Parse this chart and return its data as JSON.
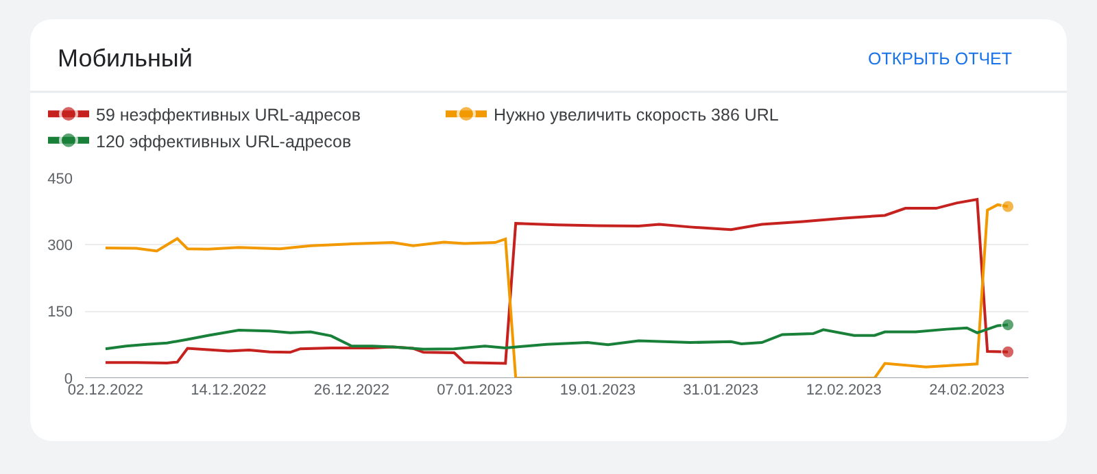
{
  "chart_data": {
    "type": "line",
    "title": "Мобильный",
    "annotations": [
      "ОТКРЫТЬ ОТЧЕТ"
    ],
    "series": [
      {
        "name": "59 неэффективных URL-адресов",
        "color": "#c5221f",
        "x": [
          "2022-12-02",
          "2022-12-05",
          "2022-12-08",
          "2022-12-09",
          "2022-12-10",
          "2022-12-12",
          "2022-12-14",
          "2022-12-16",
          "2022-12-18",
          "2022-12-20",
          "2022-12-21",
          "2022-12-24",
          "2022-12-28",
          "2022-12-30",
          "2023-01-01",
          "2023-01-02",
          "2023-01-05",
          "2023-01-06",
          "2023-01-10",
          "2023-01-11",
          "2023-01-15",
          "2023-01-19",
          "2023-01-23",
          "2023-01-25",
          "2023-01-28",
          "2023-02-01",
          "2023-02-04",
          "2023-02-08",
          "2023-02-12",
          "2023-02-16",
          "2023-02-18",
          "2023-02-21",
          "2023-02-23",
          "2023-02-25",
          "2023-02-26",
          "2023-02-28"
        ],
        "values": [
          35,
          35,
          34,
          36,
          67,
          64,
          61,
          63,
          59,
          58,
          66,
          68,
          68,
          70,
          67,
          58,
          57,
          35,
          33,
          348,
          345,
          343,
          342,
          346,
          340,
          334,
          346,
          352,
          360,
          366,
          382,
          382,
          394,
          402,
          60,
          59
        ]
      },
      {
        "name": "Нужно увеличить скорость 386 URL",
        "color": "#f29900",
        "x": [
          "2022-12-02",
          "2022-12-05",
          "2022-12-07",
          "2022-12-09",
          "2022-12-10",
          "2022-12-12",
          "2022-12-15",
          "2022-12-19",
          "2022-12-22",
          "2022-12-26",
          "2022-12-30",
          "2023-01-01",
          "2023-01-04",
          "2023-01-06",
          "2023-01-09",
          "2023-01-10",
          "2023-01-11",
          "2023-02-15",
          "2023-02-16",
          "2023-02-20",
          "2023-02-25",
          "2023-02-26",
          "2023-02-27",
          "2023-02-28"
        ],
        "values": [
          293,
          292,
          286,
          314,
          291,
          290,
          294,
          291,
          298,
          302,
          305,
          298,
          306,
          303,
          305,
          313,
          0,
          0,
          33,
          25,
          32,
          378,
          390,
          386
        ]
      },
      {
        "name": "120 эффективных URL-адресов",
        "color": "#188038",
        "x": [
          "2022-12-02",
          "2022-12-04",
          "2022-12-06",
          "2022-12-08",
          "2022-12-10",
          "2022-12-12",
          "2022-12-15",
          "2022-12-18",
          "2022-12-20",
          "2022-12-22",
          "2022-12-24",
          "2022-12-26",
          "2022-12-28",
          "2022-12-30",
          "2023-01-02",
          "2023-01-05",
          "2023-01-08",
          "2023-01-10",
          "2023-01-14",
          "2023-01-18",
          "2023-01-20",
          "2023-01-23",
          "2023-01-28",
          "2023-02-01",
          "2023-02-02",
          "2023-02-04",
          "2023-02-06",
          "2023-02-09",
          "2023-02-10",
          "2023-02-13",
          "2023-02-15",
          "2023-02-16",
          "2023-02-19",
          "2023-02-22",
          "2023-02-24",
          "2023-02-25",
          "2023-02-27",
          "2023-02-28"
        ],
        "values": [
          66,
          72,
          76,
          79,
          87,
          96,
          108,
          106,
          102,
          104,
          95,
          72,
          72,
          70,
          65,
          66,
          72,
          68,
          76,
          80,
          75,
          84,
          80,
          82,
          77,
          80,
          98,
          100,
          109,
          96,
          96,
          104,
          104,
          110,
          113,
          102,
          118,
          120
        ]
      }
    ],
    "xlim": [
      "2022-11-30",
      "2023-03-02"
    ],
    "xticks": [
      {
        "value": "2022-12-02",
        "label": "02.12.2022"
      },
      {
        "value": "2022-12-14",
        "label": "14.12.2022"
      },
      {
        "value": "2022-12-26",
        "label": "26.12.2022"
      },
      {
        "value": "2023-01-07",
        "label": "07.01.2023"
      },
      {
        "value": "2023-01-19",
        "label": "19.01.2023"
      },
      {
        "value": "2023-01-31",
        "label": "31.01.2023"
      },
      {
        "value": "2023-02-12",
        "label": "12.02.2023"
      },
      {
        "value": "2023-02-24",
        "label": "24.02.2023"
      }
    ],
    "ylim": [
      0,
      450
    ],
    "yticks": [
      0,
      150,
      300,
      450
    ],
    "grid": "y",
    "legend": "top left"
  }
}
